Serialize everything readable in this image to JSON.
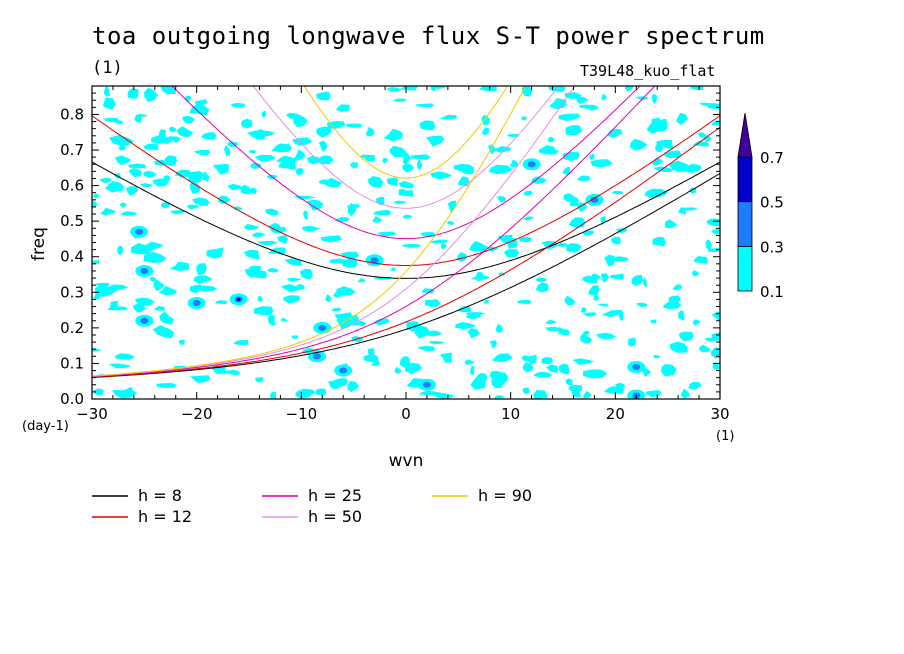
{
  "title": "toa outgoing longwave flux S-T power spectrum",
  "title_unit": "(1)",
  "run_label": "T39L48_kuo_flat",
  "colors": {
    "contour_0_1": "#00ffff",
    "contour_0_3": "#1e7cff",
    "contour_0_5": "#0000c8",
    "contour_0_7": "#4000a0"
  },
  "chart_data": {
    "type": "contour",
    "xlabel": "wvn",
    "ylabel": "freq",
    "x_unit": "(1)",
    "y_unit": "(day-1)",
    "xlim": [
      -30,
      30
    ],
    "ylim": [
      0,
      0.88
    ],
    "x_ticks": [
      -30,
      -20,
      -10,
      0,
      10,
      20,
      30
    ],
    "y_ticks": [
      0.0,
      0.1,
      0.2,
      0.3,
      0.4,
      0.5,
      0.6,
      0.7,
      0.8
    ],
    "x_tick_labels": [
      "-30",
      "-20",
      "-10",
      "0",
      "10",
      "20",
      "30"
    ],
    "y_tick_labels": [
      "0.0",
      "0.1",
      "0.2",
      "0.3",
      "0.4",
      "0.5",
      "0.6",
      "0.7",
      "0.8"
    ],
    "colorbar": {
      "levels": [
        "0.1",
        "0.3",
        "0.5",
        "0.7"
      ],
      "colors": [
        "#00ffff",
        "#1e7cff",
        "#0000c8",
        "#4000a0"
      ]
    },
    "dispersion_curves": [
      {
        "label": "h =  8",
        "h": 8,
        "color": "#000000"
      },
      {
        "label": "h = 12",
        "h": 12,
        "color": "#e00000"
      },
      {
        "label": "h = 25",
        "h": 25,
        "color": "#e000b0"
      },
      {
        "label": "h = 50",
        "h": 50,
        "color": "#e090e0"
      },
      {
        "label": "h = 90",
        "h": 90,
        "color": "#f0c800"
      }
    ],
    "power_peaks": [
      {
        "wvn": -25.5,
        "freq": 0.47,
        "level": 0.3
      },
      {
        "wvn": -25,
        "freq": 0.36,
        "level": 0.3
      },
      {
        "wvn": -25,
        "freq": 0.22,
        "level": 0.3
      },
      {
        "wvn": -20,
        "freq": 0.27,
        "level": 0.3
      },
      {
        "wvn": -16,
        "freq": 0.28,
        "level": 0.5
      },
      {
        "wvn": -8,
        "freq": 0.2,
        "level": 0.3
      },
      {
        "wvn": -8.5,
        "freq": 0.12,
        "level": 0.3
      },
      {
        "wvn": -6,
        "freq": 0.08,
        "level": 0.3
      },
      {
        "wvn": -3,
        "freq": 0.39,
        "level": 0.3
      },
      {
        "wvn": 2,
        "freq": 0.04,
        "level": 0.3
      },
      {
        "wvn": 12,
        "freq": 0.66,
        "level": 0.3
      },
      {
        "wvn": 18,
        "freq": 0.56,
        "level": 0.3
      },
      {
        "wvn": 22,
        "freq": 0.09,
        "level": 0.3
      },
      {
        "wvn": 22,
        "freq": 0.01,
        "level": 0.3
      }
    ]
  }
}
